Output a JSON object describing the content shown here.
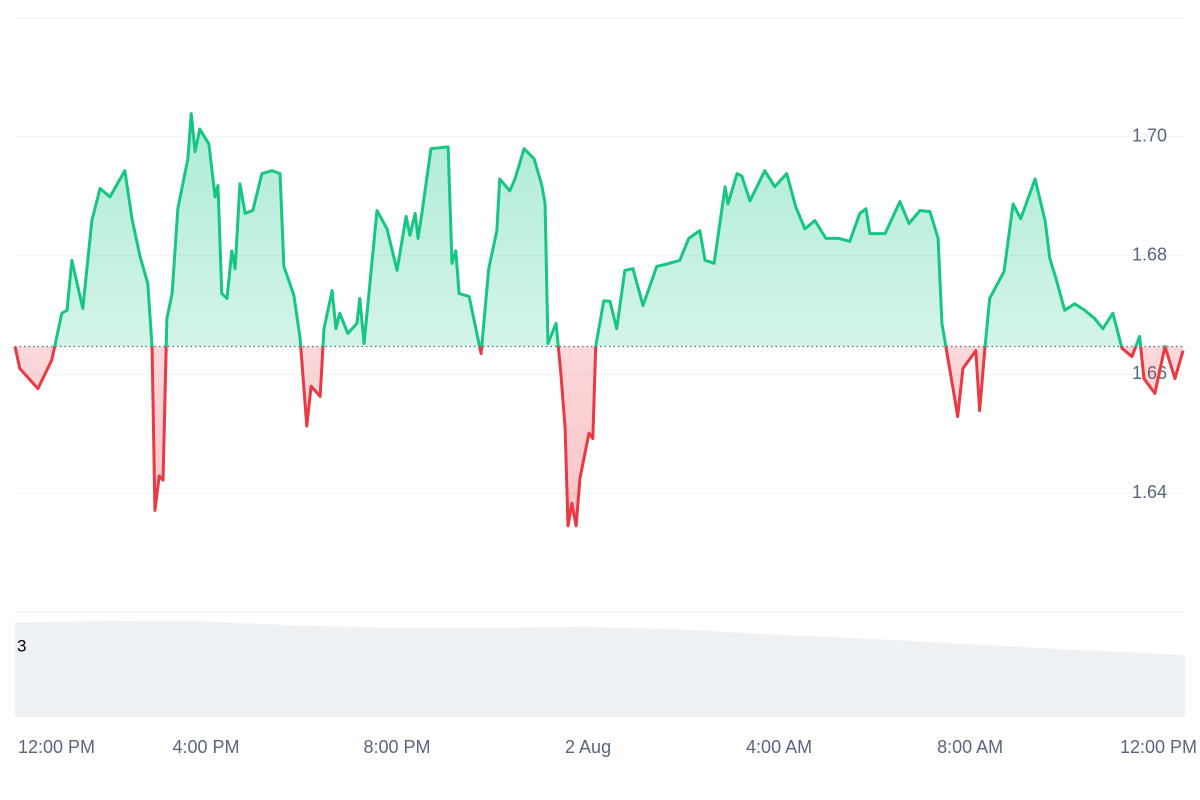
{
  "chart_data": {
    "type": "line",
    "baseline": 1.6647,
    "up_color": "#16c784",
    "down_color": "#ea3943",
    "xlim": [
      0,
      24.5
    ],
    "ylim": [
      1.62,
      1.72
    ],
    "xticks": [
      {
        "value": 0,
        "label": "12:00 PM"
      },
      {
        "value": 4,
        "label": "4:00 PM"
      },
      {
        "value": 8,
        "label": "8:00 PM"
      },
      {
        "value": 12,
        "label": "2 Aug"
      },
      {
        "value": 16,
        "label": "4:00 AM"
      },
      {
        "value": 20,
        "label": "8:00 AM"
      },
      {
        "value": 24,
        "label": "12:00 PM"
      }
    ],
    "yticks": [
      1.64,
      1.66,
      1.68,
      {
        "value": 1.7,
        "label": "1.70"
      }
    ],
    "grid": true,
    "x": [
      0,
      0.1,
      0.48,
      0.77,
      0.98,
      1.09,
      1.19,
      1.42,
      1.61,
      1.78,
      1.99,
      2.3,
      2.45,
      2.62,
      2.78,
      2.87,
      2.93,
      3.02,
      3.1,
      3.18,
      3.29,
      3.41,
      3.62,
      3.69,
      3.77,
      3.87,
      4.06,
      4.19,
      4.25,
      4.33,
      4.44,
      4.54,
      4.61,
      4.71,
      4.82,
      4.98,
      5.17,
      5.38,
      5.55,
      5.63,
      5.84,
      5.97,
      6.11,
      6.2,
      6.39,
      6.47,
      6.64,
      6.72,
      6.8,
      6.97,
      7.16,
      7.22,
      7.31,
      7.58,
      7.79,
      8.0,
      8.19,
      8.27,
      8.38,
      8.44,
      8.52,
      8.71,
      9.07,
      9.15,
      9.23,
      9.3,
      9.51,
      9.76,
      9.92,
      10.09,
      10.15,
      10.36,
      10.47,
      10.66,
      10.87,
      11.03,
      11.1,
      11.16,
      11.33,
      11.43,
      11.52,
      11.58,
      11.66,
      11.75,
      11.83,
      12.02,
      12.1,
      12.16,
      12.33,
      12.46,
      12.6,
      12.77,
      12.94,
      13.15,
      13.44,
      13.61,
      13.92,
      14.11,
      14.34,
      14.45,
      14.64,
      14.87,
      14.93,
      15.12,
      15.22,
      15.39,
      15.7,
      15.91,
      16.16,
      16.35,
      16.54,
      16.75,
      16.98,
      17.25,
      17.48,
      17.69,
      17.82,
      17.9,
      18.22,
      18.53,
      18.72,
      18.95,
      19.16,
      19.33,
      19.41,
      19.66,
      19.74,
      19.85,
      20.12,
      20.2,
      20.31,
      20.41,
      20.71,
      20.9,
      21.06,
      21.36,
      21.57,
      21.67,
      21.8,
      21.98,
      22.19,
      22.4,
      22.61,
      22.78,
      22.99,
      23.18,
      23.39,
      23.55,
      23.64,
      23.87,
      24.08,
      24.29,
      24.46
    ],
    "values": [
      1.6647,
      1.661,
      1.6576,
      1.6624,
      1.6703,
      1.6708,
      1.6792,
      1.6711,
      1.6859,
      1.6913,
      1.6899,
      1.6943,
      1.6862,
      1.6798,
      1.6753,
      1.6647,
      1.6371,
      1.6429,
      1.6422,
      1.6694,
      1.6736,
      1.6879,
      1.6963,
      1.7039,
      1.6975,
      1.7013,
      1.6988,
      1.6899,
      1.6918,
      1.6736,
      1.6728,
      1.6808,
      1.6778,
      1.6921,
      1.6871,
      1.6876,
      1.6938,
      1.6943,
      1.6938,
      1.6782,
      1.6733,
      1.6661,
      1.6513,
      1.658,
      1.6563,
      1.6677,
      1.6741,
      1.6677,
      1.6703,
      1.6669,
      1.6686,
      1.6728,
      1.6652,
      1.6876,
      1.6845,
      1.6775,
      1.6866,
      1.6834,
      1.6871,
      1.6829,
      1.6871,
      1.698,
      1.6983,
      1.6787,
      1.6808,
      1.6736,
      1.6731,
      1.6635,
      1.6778,
      1.6842,
      1.6929,
      1.6909,
      1.6929,
      1.698,
      1.6963,
      1.6919,
      1.6887,
      1.6652,
      1.6686,
      1.6602,
      1.6509,
      1.6345,
      1.6383,
      1.6345,
      1.6425,
      1.6501,
      1.6492,
      1.6647,
      1.6724,
      1.6723,
      1.6677,
      1.6775,
      1.6778,
      1.6716,
      1.6782,
      1.6785,
      1.6792,
      1.6829,
      1.6842,
      1.6792,
      1.6787,
      1.6916,
      1.6887,
      1.6938,
      1.6934,
      1.6892,
      1.6943,
      1.6916,
      1.6938,
      1.6882,
      1.6845,
      1.6859,
      1.6829,
      1.6829,
      1.6824,
      1.6871,
      1.6879,
      1.6837,
      1.6837,
      1.6891,
      1.6854,
      1.6876,
      1.6874,
      1.6829,
      1.6686,
      1.6568,
      1.6529,
      1.661,
      1.664,
      1.6539,
      1.6644,
      1.6728,
      1.6773,
      1.6887,
      1.6862,
      1.6929,
      1.6859,
      1.6795,
      1.6761,
      1.6708,
      1.6719,
      1.6708,
      1.6694,
      1.6677,
      1.6703,
      1.6644,
      1.663,
      1.6664,
      1.6593,
      1.6568,
      1.6647,
      1.6593,
      1.664
    ],
    "volume": {
      "color": "#eff2f5",
      "ylim": [
        0,
        4.5
      ],
      "yticks": [
        3
      ],
      "x": [
        0,
        2,
        4,
        6,
        8,
        10,
        12,
        14,
        16,
        18,
        20,
        22,
        24.5
      ],
      "values": [
        4.05,
        4.12,
        4.1,
        3.92,
        3.82,
        3.83,
        3.86,
        3.75,
        3.52,
        3.35,
        3.12,
        2.9,
        2.66
      ]
    }
  }
}
